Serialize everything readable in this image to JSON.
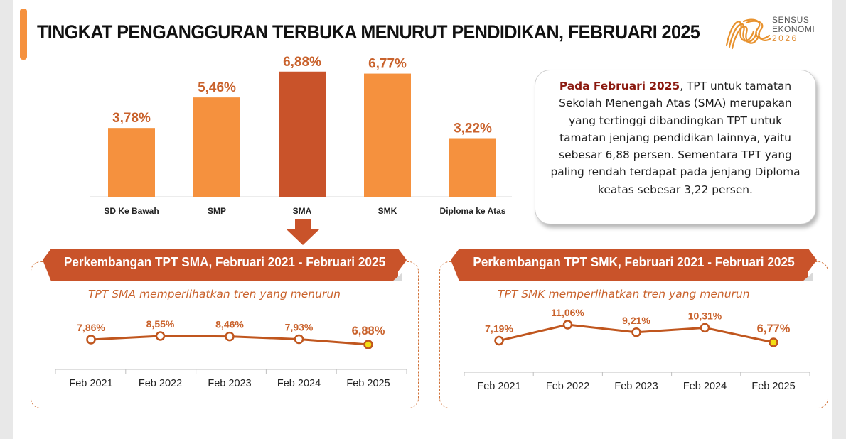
{
  "header": {
    "title": "TINGKAT PENGANGGURAN TERBUKA MENURUT PENDIDIKAN, FEBRUARI 2025",
    "logo_line1": "SENSUS",
    "logo_line2": "EKONOMI",
    "logo_line3": "2026"
  },
  "callout": {
    "emphasis": "Pada Februari 2025",
    "text": ", TPT untuk tamatan Sekolah Menengah Atas (SMA) merupakan yang tertinggi dibandingkan TPT untuk tamatan jenjang pendidikan lainnya, yaitu sebesar 6,88 persen. Sementara TPT yang paling rendah terdapat pada jenjang Diploma keatas sebesar 3,22 persen."
  },
  "panels": {
    "sma": {
      "ribbon": "Perkembangan TPT SMA, Februari  2021 - Februari 2025",
      "subtitle": "TPT SMA memperlihatkan tren yang menurun"
    },
    "smk": {
      "ribbon": "Perkembangan TPT SMK, Februari  2021 - Februari 2025",
      "subtitle": "TPT SMK memperlihatkan tren yang menurun"
    }
  },
  "colors": {
    "bar": "#f5913e",
    "bar_highlight": "#c9532a",
    "label": "#c9622c",
    "line": "#c0561e",
    "ribbon": "#c9532a",
    "point_last": "#f2de13"
  },
  "chart_data": [
    {
      "type": "bar",
      "categories": [
        "SD Ke Bawah",
        "SMP",
        "SMA",
        "SMK",
        "Diploma ke Atas"
      ],
      "values": [
        3.78,
        5.46,
        6.88,
        6.77,
        3.22
      ],
      "data_labels": [
        "3,78%",
        "5,46%",
        "6,88%",
        "6,77%",
        "3,22%"
      ],
      "highlight": "SMA",
      "ylim": [
        0,
        7.3
      ],
      "grid": false
    },
    {
      "type": "line",
      "categories": [
        "Feb 2021",
        "Feb 2022",
        "Feb 2023",
        "Feb 2024",
        "Feb 2025"
      ],
      "values": [
        7.86,
        8.55,
        8.46,
        7.93,
        6.88
      ],
      "data_labels": [
        "7,86%",
        "8,55%",
        "8,46%",
        "7,93%",
        "6,88%"
      ],
      "ylim": [
        0,
        10
      ]
    },
    {
      "type": "line",
      "categories": [
        "Feb 2021",
        "Feb 2022",
        "Feb 2023",
        "Feb 2024",
        "Feb 2025"
      ],
      "values": [
        7.19,
        11.06,
        9.21,
        10.31,
        6.77
      ],
      "data_labels": [
        "7,19%",
        "11,06%",
        "9,21%",
        "10,31%",
        "6,77%"
      ],
      "ylim": [
        0,
        20
      ]
    }
  ]
}
